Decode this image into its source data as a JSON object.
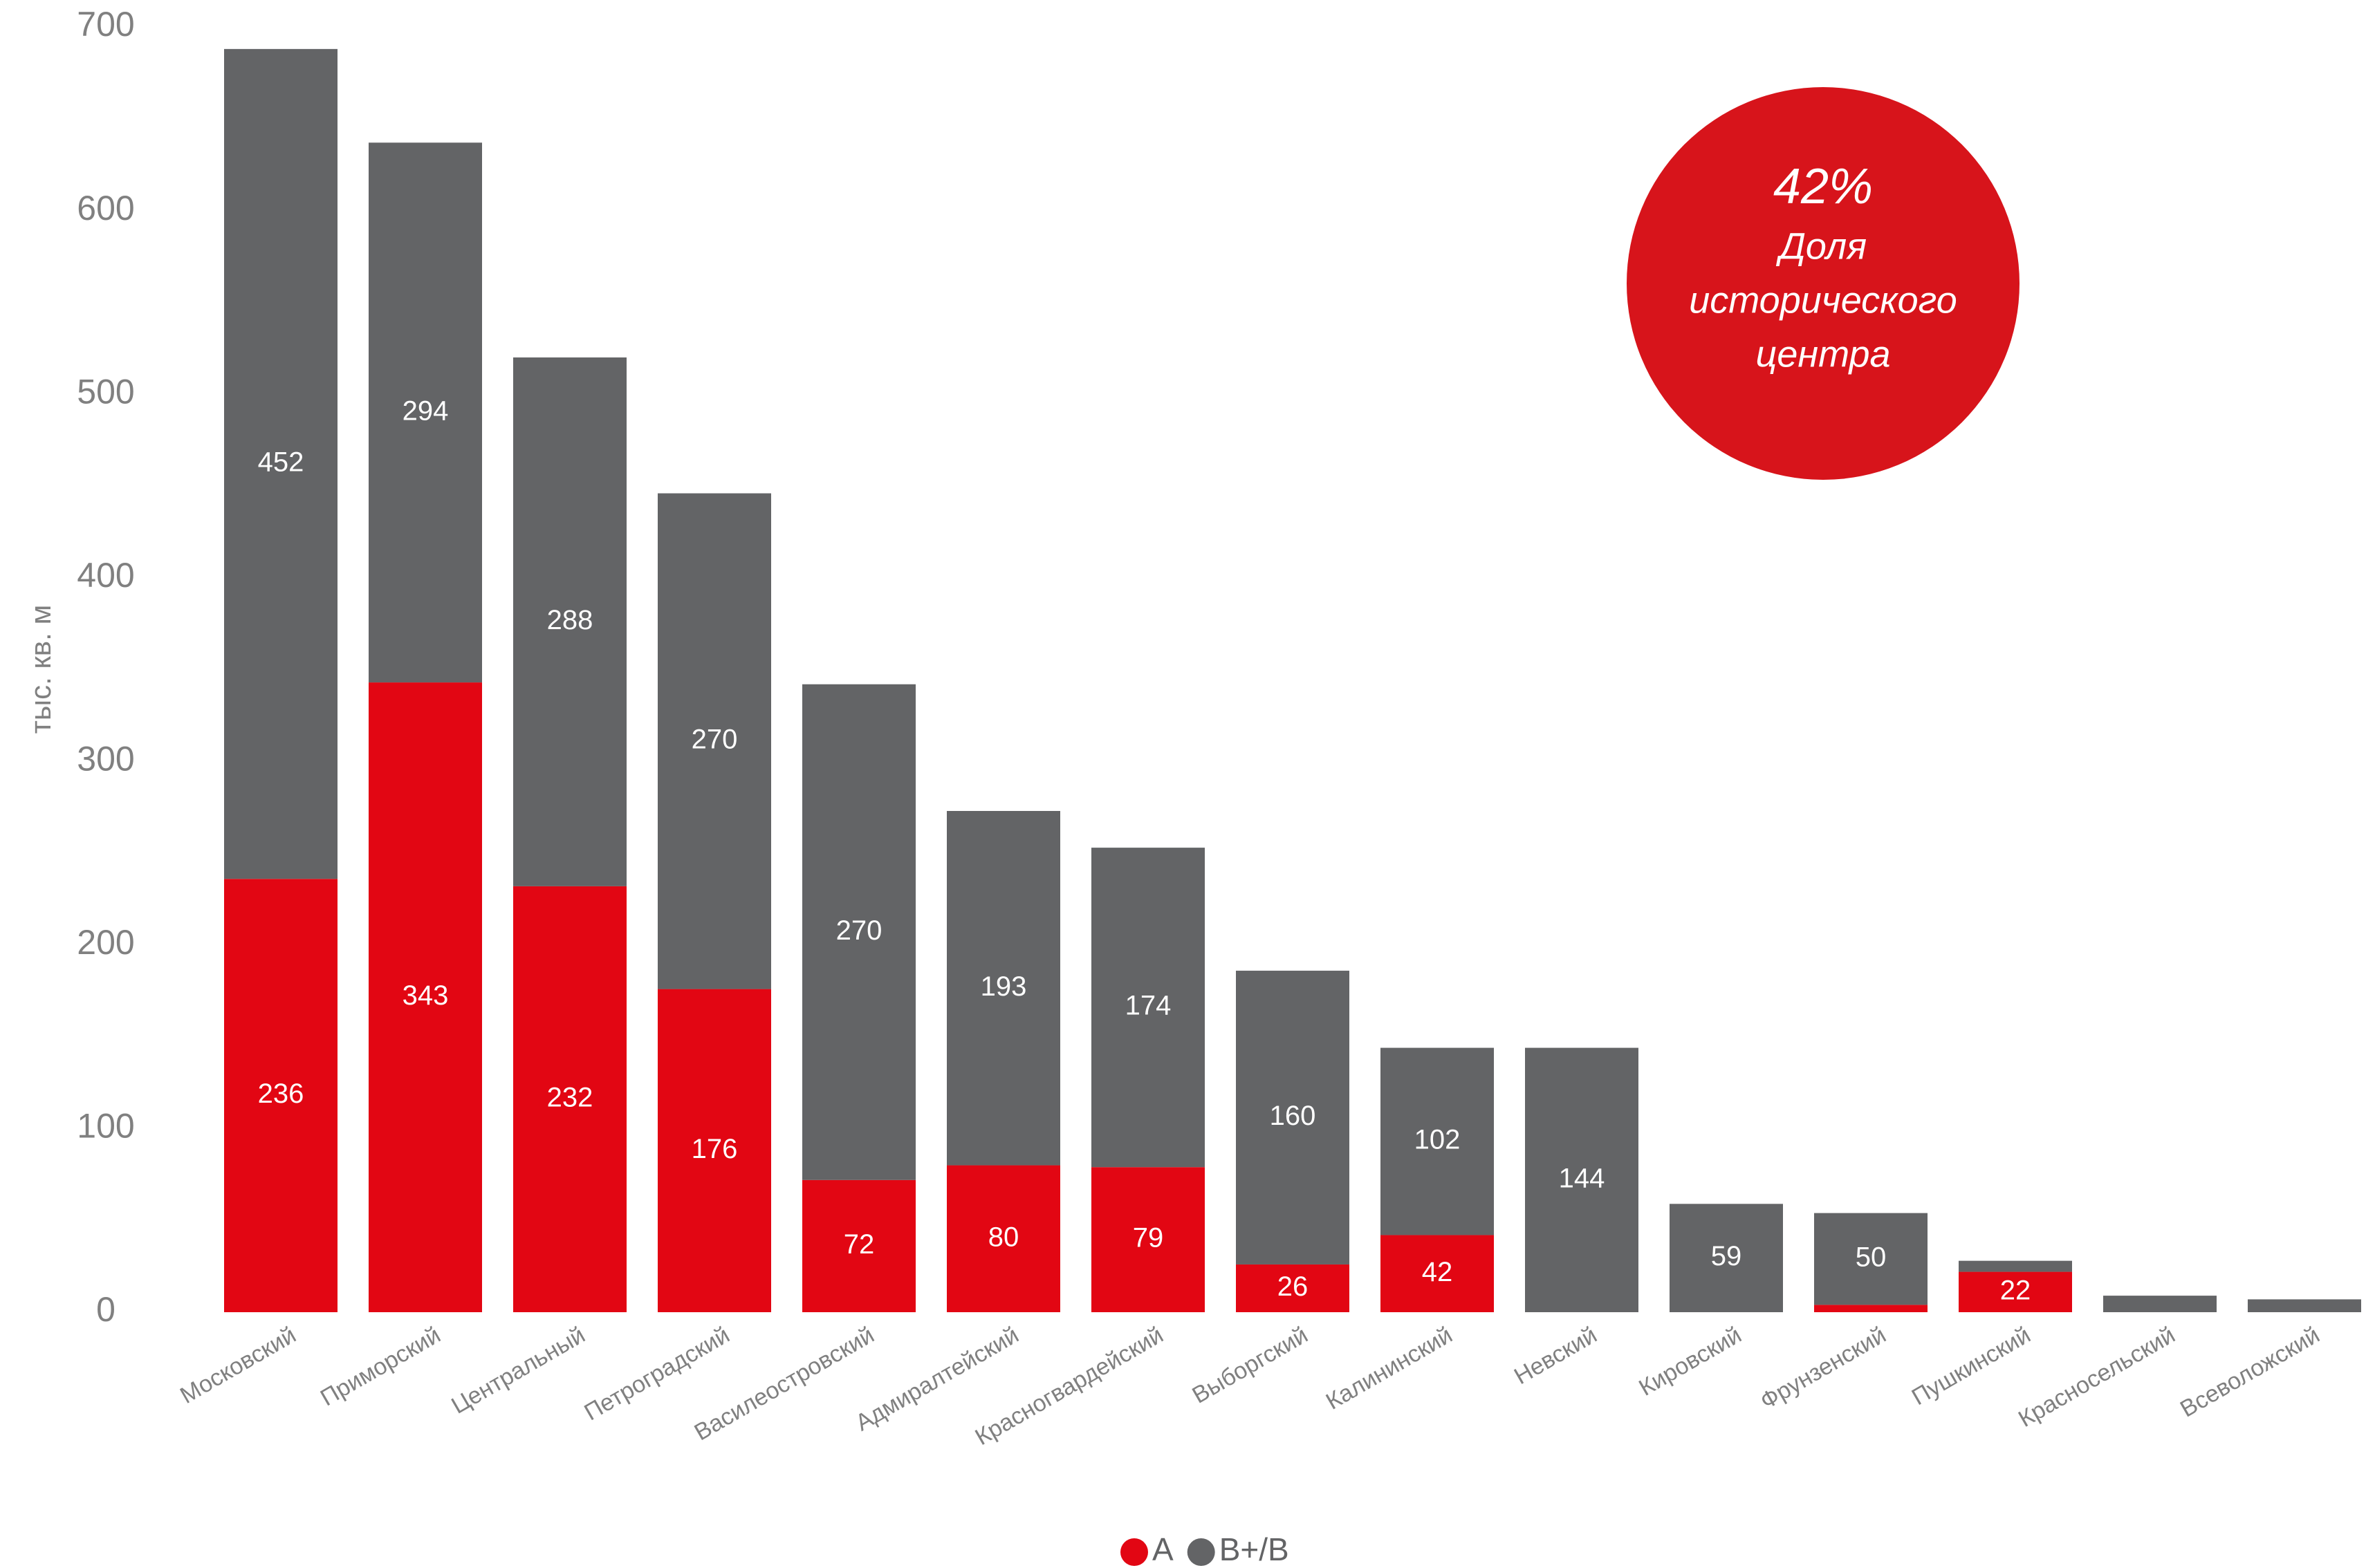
{
  "chart_data": {
    "type": "stacked_bar",
    "y_axis_label": "тыс. кв. м",
    "categories": [
      "Московский",
      "Приморский",
      "Центральный",
      "Петроградский",
      "Василеостровский",
      "Адмиралтейский",
      "Красногвардейский",
      "Выборгский",
      "Калининский",
      "Невский",
      "Кировский",
      "Фрунзенский",
      "Пушкинский",
      "Красносельский",
      "Всеволожский"
    ],
    "series": [
      {
        "name": "A",
        "color": "#e20613",
        "values": [
          236,
          343,
          232,
          176,
          72,
          80,
          79,
          26,
          42,
          0,
          0,
          4,
          22,
          0,
          0
        ]
      },
      {
        "name": "B+/B",
        "color": "#636466",
        "values": [
          452,
          294,
          288,
          270,
          270,
          193,
          174,
          160,
          102,
          144,
          59,
          50,
          6,
          9,
          7
        ]
      }
    ],
    "ylim": [
      0,
      700
    ],
    "yticks": [
      0,
      100,
      200,
      300,
      400,
      500,
      600,
      700
    ],
    "grid": false,
    "annotation": {
      "color": "#d7141b",
      "lines": [
        "42%",
        "Доля",
        "исторического",
        "центра"
      ]
    },
    "legend": "bottom"
  }
}
